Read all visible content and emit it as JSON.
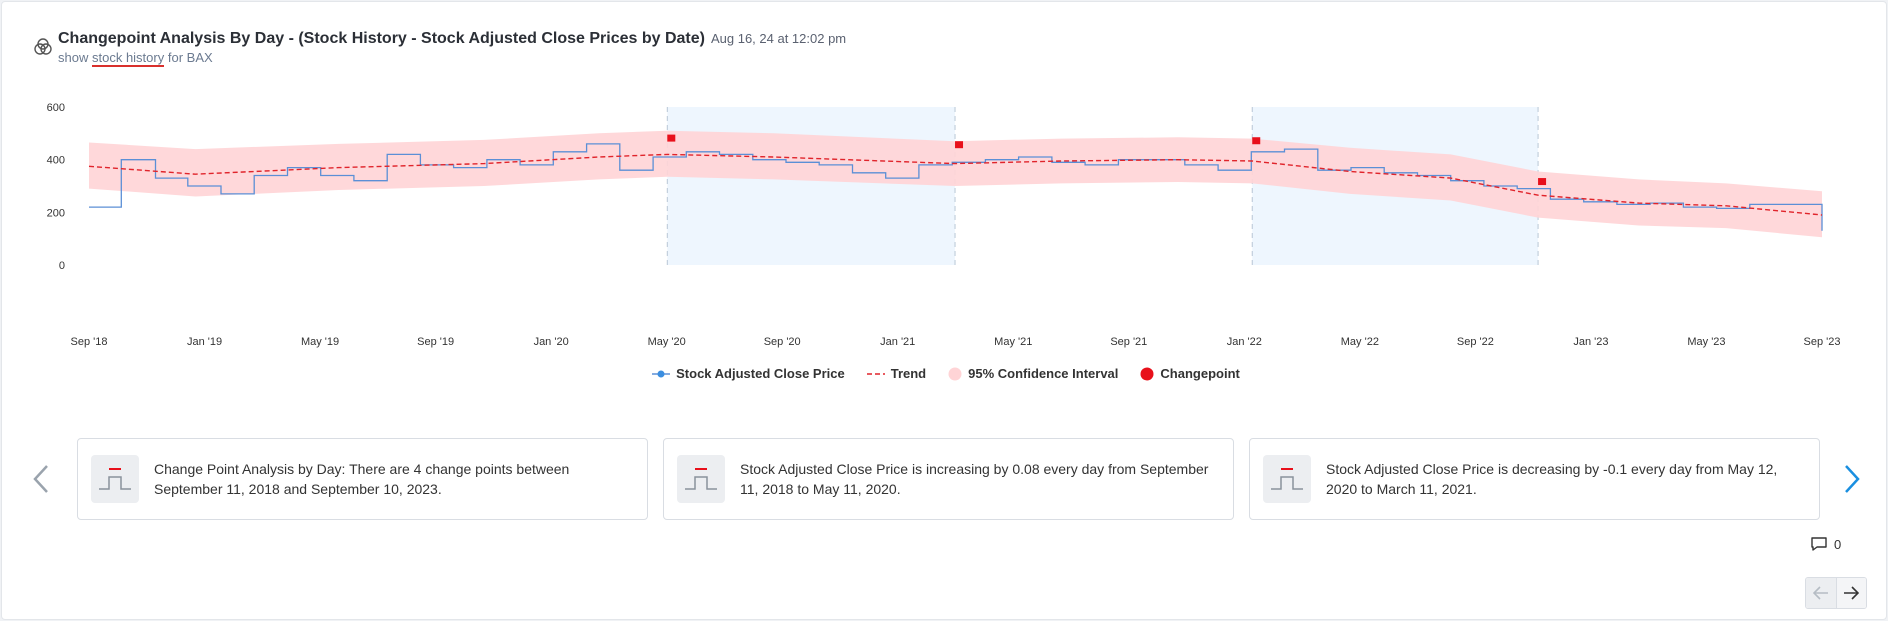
{
  "header": {
    "title": "Changepoint Analysis By Day - (Stock History - Stock Adjusted Close Prices by Date)",
    "timestamp": "Aug 16, 24 at 12:02 pm",
    "subtitle_prefix": "show",
    "subtitle_link": "stock history",
    "subtitle_suffix": "for BAX",
    "icon": "venn-diagram-icon"
  },
  "chart_data": {
    "type": "line",
    "title": "",
    "xlabel": "",
    "ylabel": "",
    "ylim": [
      0,
      600
    ],
    "yticks": [
      "0",
      "200",
      "400",
      "600"
    ],
    "xticks": [
      "Sep '18",
      "Jan '19",
      "May '19",
      "Sep '19",
      "Jan '20",
      "May '20",
      "Sep '20",
      "Jan '21",
      "May '21",
      "Sep '21",
      "Jan '22",
      "May '22",
      "Sep '22",
      "Jan '23",
      "May '23",
      "Sep '23"
    ],
    "x_start": "2018-09-11",
    "x_end": "2023-09-10",
    "grid": false,
    "legend_position": "bottom",
    "colors": {
      "price": "#5b8fd6",
      "trend": "#e0242b",
      "band": "#ffd4d6",
      "changepoint": "#e8101b",
      "shade": "#eef6fe"
    },
    "shaded_ranges": [
      [
        "2020-05-12",
        "2021-03-11"
      ],
      [
        "2022-01-18",
        "2022-11-15"
      ]
    ],
    "changepoints": [
      {
        "date": "2020-05-12",
        "value": 480
      },
      {
        "date": "2021-03-11",
        "value": 455
      },
      {
        "date": "2022-01-18",
        "value": 470
      },
      {
        "date": "2022-11-15",
        "value": 315
      }
    ],
    "series": [
      {
        "name": "Stock Adjusted Close Price",
        "x": [
          "2018-09-11",
          "2018-10-15",
          "2018-11-20",
          "2018-12-24",
          "2019-01-28",
          "2019-03-04",
          "2019-04-08",
          "2019-05-13",
          "2019-06-17",
          "2019-07-22",
          "2019-08-26",
          "2019-09-30",
          "2019-11-04",
          "2019-12-09",
          "2020-01-13",
          "2020-02-17",
          "2020-03-23",
          "2020-04-27",
          "2020-06-01",
          "2020-07-06",
          "2020-08-10",
          "2020-09-14",
          "2020-10-19",
          "2020-11-23",
          "2020-12-28",
          "2021-02-01",
          "2021-03-08",
          "2021-04-12",
          "2021-05-17",
          "2021-06-21",
          "2021-07-26",
          "2021-08-30",
          "2021-10-04",
          "2021-11-08",
          "2021-12-13",
          "2022-01-17",
          "2022-02-21",
          "2022-03-28",
          "2022-05-02",
          "2022-06-06",
          "2022-07-11",
          "2022-08-15",
          "2022-09-19",
          "2022-10-24",
          "2022-11-28",
          "2023-01-02",
          "2023-02-06",
          "2023-03-13",
          "2023-04-17",
          "2023-05-22",
          "2023-06-26",
          "2023-07-31",
          "2023-09-10"
        ],
        "values": [
          220,
          400,
          330,
          300,
          270,
          340,
          370,
          340,
          320,
          420,
          380,
          370,
          400,
          380,
          430,
          460,
          360,
          410,
          430,
          420,
          400,
          390,
          380,
          350,
          330,
          380,
          390,
          400,
          410,
          390,
          380,
          400,
          400,
          380,
          360,
          430,
          440,
          360,
          370,
          350,
          340,
          320,
          300,
          290,
          250,
          240,
          230,
          235,
          220,
          215,
          230,
          230,
          130
        ]
      },
      {
        "name": "Trend",
        "x": [
          "2018-09-11",
          "2019-01-01",
          "2019-06-01",
          "2019-11-01",
          "2020-03-01",
          "2020-05-12",
          "2020-09-01",
          "2021-03-11",
          "2021-07-01",
          "2021-11-01",
          "2022-01-18",
          "2022-05-01",
          "2022-08-15",
          "2022-11-15",
          "2023-03-01",
          "2023-06-01",
          "2023-09-10"
        ],
        "values": [
          375,
          345,
          370,
          385,
          410,
          420,
          410,
          385,
          395,
          400,
          395,
          355,
          330,
          265,
          235,
          225,
          190
        ]
      },
      {
        "name": "95% Confidence Interval",
        "x": [
          "2018-09-11",
          "2019-01-01",
          "2019-06-01",
          "2019-11-01",
          "2020-03-01",
          "2020-05-12",
          "2020-09-01",
          "2021-03-11",
          "2021-07-01",
          "2021-11-01",
          "2022-01-18",
          "2022-05-01",
          "2022-08-15",
          "2022-11-15",
          "2023-03-01",
          "2023-06-01",
          "2023-09-10"
        ],
        "upper": [
          465,
          440,
          460,
          475,
          500,
          510,
          500,
          470,
          480,
          485,
          480,
          445,
          420,
          355,
          325,
          310,
          280
        ],
        "lower": [
          290,
          260,
          285,
          300,
          325,
          335,
          325,
          300,
          310,
          315,
          310,
          270,
          245,
          180,
          150,
          140,
          105
        ]
      },
      {
        "name": "Changepoint",
        "x": [
          "2020-05-12",
          "2021-03-11",
          "2022-01-18",
          "2022-11-15"
        ],
        "values": [
          480,
          455,
          470,
          315
        ]
      }
    ]
  },
  "legend": [
    {
      "name": "Stock Adjusted Close Price",
      "marker": "dot-line"
    },
    {
      "name": "Trend",
      "marker": "dashed-line"
    },
    {
      "name": "95% Confidence Interval",
      "marker": "band"
    },
    {
      "name": "Changepoint",
      "marker": "dot"
    }
  ],
  "insights": [
    {
      "text": "Change Point Analysis by Day: There are 4 change points between September 11, 2018 and September 10, 2023."
    },
    {
      "text": "Stock Adjusted Close Price is increasing by 0.08 every day from September 11, 2018 to May 11, 2020."
    },
    {
      "text": "Stock Adjusted Close Price is decreasing by -0.1 every day from May 12, 2020 to March 11, 2021."
    }
  ],
  "comments": {
    "count": "0"
  }
}
